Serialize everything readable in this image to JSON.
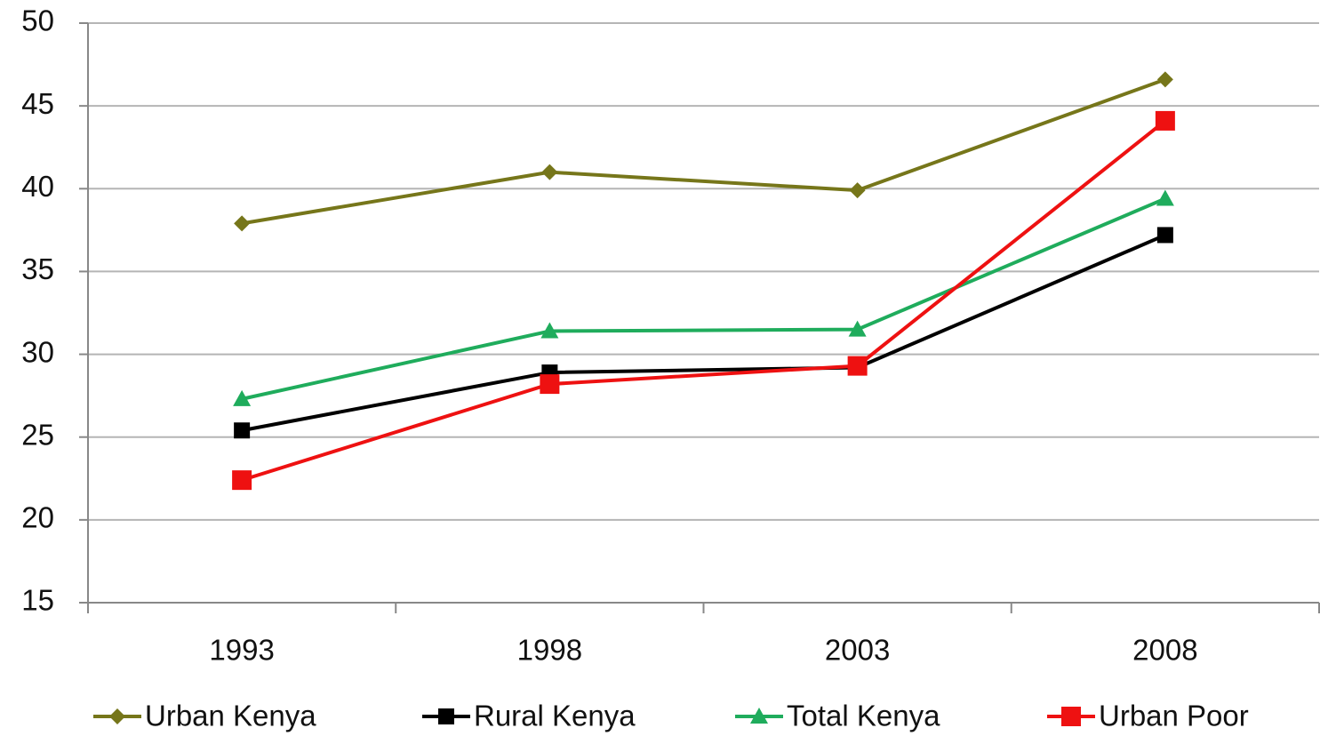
{
  "chart_data": {
    "type": "line",
    "categories": [
      "1993",
      "1998",
      "2003",
      "2008"
    ],
    "series": [
      {
        "name": "Urban Kenya",
        "color": "#76761a",
        "marker": "diamond",
        "values": [
          37.9,
          41.0,
          39.9,
          46.6
        ]
      },
      {
        "name": "Rural Kenya",
        "color": "#000000",
        "marker": "square",
        "values": [
          25.4,
          28.9,
          29.2,
          37.2
        ]
      },
      {
        "name": "Total Kenya",
        "color": "#1fac5c",
        "marker": "triangle",
        "values": [
          27.3,
          31.4,
          31.5,
          39.4
        ]
      },
      {
        "name": "Urban Poor",
        "color": "#ee1111",
        "marker": "square",
        "values": [
          22.4,
          28.2,
          29.3,
          44.1
        ]
      }
    ],
    "ylim": [
      15,
      50
    ],
    "yticks": [
      15,
      20,
      25,
      30,
      35,
      40,
      45,
      50
    ],
    "grid": true,
    "legend": "bottom"
  }
}
